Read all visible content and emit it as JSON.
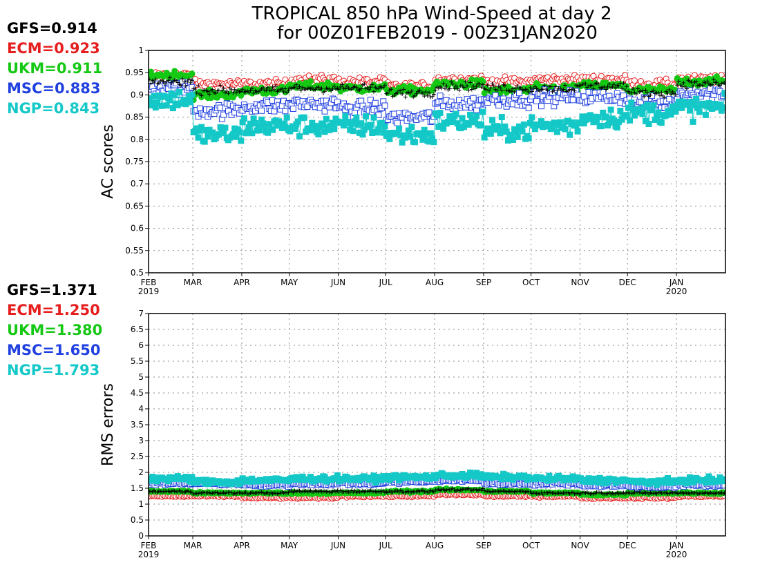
{
  "title": {
    "line1": "TROPICAL 850 hPa Wind-Speed at day 2",
    "line2": "for 00Z01FEB2019 - 00Z31JAN2020"
  },
  "colors": {
    "GFS": "#000000",
    "ECM": "#e61e1e",
    "UKM": "#14c814",
    "MSC": "#2040e0",
    "NGP": "#14c8c8"
  },
  "months": [
    {
      "label": "FEB",
      "sub": "2019"
    },
    {
      "label": "MAR",
      "sub": ""
    },
    {
      "label": "APR",
      "sub": ""
    },
    {
      "label": "MAY",
      "sub": ""
    },
    {
      "label": "JUN",
      "sub": ""
    },
    {
      "label": "JUL",
      "sub": ""
    },
    {
      "label": "AUG",
      "sub": ""
    },
    {
      "label": "SEP",
      "sub": ""
    },
    {
      "label": "OCT",
      "sub": ""
    },
    {
      "label": "NOV",
      "sub": ""
    },
    {
      "label": "DEC",
      "sub": ""
    },
    {
      "label": "JAN",
      "sub": "2020"
    }
  ],
  "chart_data": [
    {
      "type": "scatter",
      "ylabel": "AC scores",
      "ylim": [
        0.5,
        1.0
      ],
      "ytick_labels": [
        "0.5",
        "0.55",
        "0.6",
        "0.65",
        "0.7",
        "0.75",
        "0.8",
        "0.85",
        "0.9",
        "0.95",
        "1"
      ],
      "grid": true,
      "stats": [
        {
          "name": "GFS",
          "text": "GFS=0.914"
        },
        {
          "name": "ECM",
          "text": "ECM=0.923"
        },
        {
          "name": "UKM",
          "text": "UKM=0.911"
        },
        {
          "name": "MSC",
          "text": "MSC=0.883"
        },
        {
          "name": "NGP",
          "text": "NGP=0.843"
        }
      ],
      "series": [
        {
          "name": "ECM",
          "marker": "circle-open",
          "monthly_values": [
            0.945,
            0.925,
            0.925,
            0.935,
            0.93,
            0.92,
            0.935,
            0.93,
            0.935,
            0.935,
            0.925,
            0.935
          ]
        },
        {
          "name": "UKM",
          "marker": "circle-filled",
          "monthly_values": [
            0.945,
            0.9,
            0.91,
            0.92,
            0.915,
            0.91,
            0.925,
            0.91,
            0.915,
            0.92,
            0.91,
            0.93
          ]
        },
        {
          "name": "MSC",
          "marker": "square-open",
          "monthly_values": [
            0.915,
            0.865,
            0.875,
            0.88,
            0.87,
            0.85,
            0.88,
            0.89,
            0.895,
            0.895,
            0.88,
            0.905
          ]
        },
        {
          "name": "NGP",
          "marker": "square-filled",
          "monthly_values": [
            0.89,
            0.81,
            0.83,
            0.83,
            0.83,
            0.81,
            0.84,
            0.82,
            0.83,
            0.85,
            0.86,
            0.87
          ]
        },
        {
          "name": "GFS",
          "marker": "plus",
          "monthly_values": [
            0.93,
            0.91,
            0.91,
            0.915,
            0.915,
            0.905,
            0.92,
            0.915,
            0.915,
            0.92,
            0.905,
            0.925
          ]
        }
      ]
    },
    {
      "type": "scatter",
      "ylabel": "RMS errors",
      "ylim": [
        0,
        7
      ],
      "ytick_labels": [
        "0",
        "0.5",
        "1",
        "1.5",
        "2",
        "2.5",
        "3",
        "3.5",
        "4",
        "4.5",
        "5",
        "5.5",
        "6",
        "6.5",
        "7"
      ],
      "grid": true,
      "stats": [
        {
          "name": "GFS",
          "text": "GFS=1.371"
        },
        {
          "name": "ECM",
          "text": "ECM=1.250"
        },
        {
          "name": "UKM",
          "text": "UKM=1.380"
        },
        {
          "name": "MSC",
          "text": "MSC=1.650"
        },
        {
          "name": "NGP",
          "text": "NGP=1.793"
        }
      ],
      "series": [
        {
          "name": "ECM",
          "marker": "circle-open",
          "monthly_values": [
            1.25,
            1.25,
            1.2,
            1.2,
            1.25,
            1.25,
            1.3,
            1.25,
            1.25,
            1.2,
            1.2,
            1.25
          ]
        },
        {
          "name": "UKM",
          "marker": "circle-filled",
          "monthly_values": [
            1.4,
            1.35,
            1.35,
            1.35,
            1.35,
            1.4,
            1.45,
            1.4,
            1.35,
            1.3,
            1.35,
            1.35
          ]
        },
        {
          "name": "MSC",
          "marker": "square-open",
          "monthly_values": [
            1.65,
            1.65,
            1.6,
            1.65,
            1.65,
            1.7,
            1.75,
            1.65,
            1.65,
            1.6,
            1.55,
            1.6
          ]
        },
        {
          "name": "NGP",
          "marker": "square-filled",
          "monthly_values": [
            1.8,
            1.7,
            1.75,
            1.8,
            1.8,
            1.85,
            1.9,
            1.85,
            1.8,
            1.75,
            1.7,
            1.75
          ]
        },
        {
          "name": "GFS",
          "marker": "plus",
          "monthly_values": [
            1.4,
            1.35,
            1.35,
            1.4,
            1.4,
            1.4,
            1.45,
            1.4,
            1.35,
            1.35,
            1.35,
            1.35
          ]
        }
      ]
    }
  ]
}
